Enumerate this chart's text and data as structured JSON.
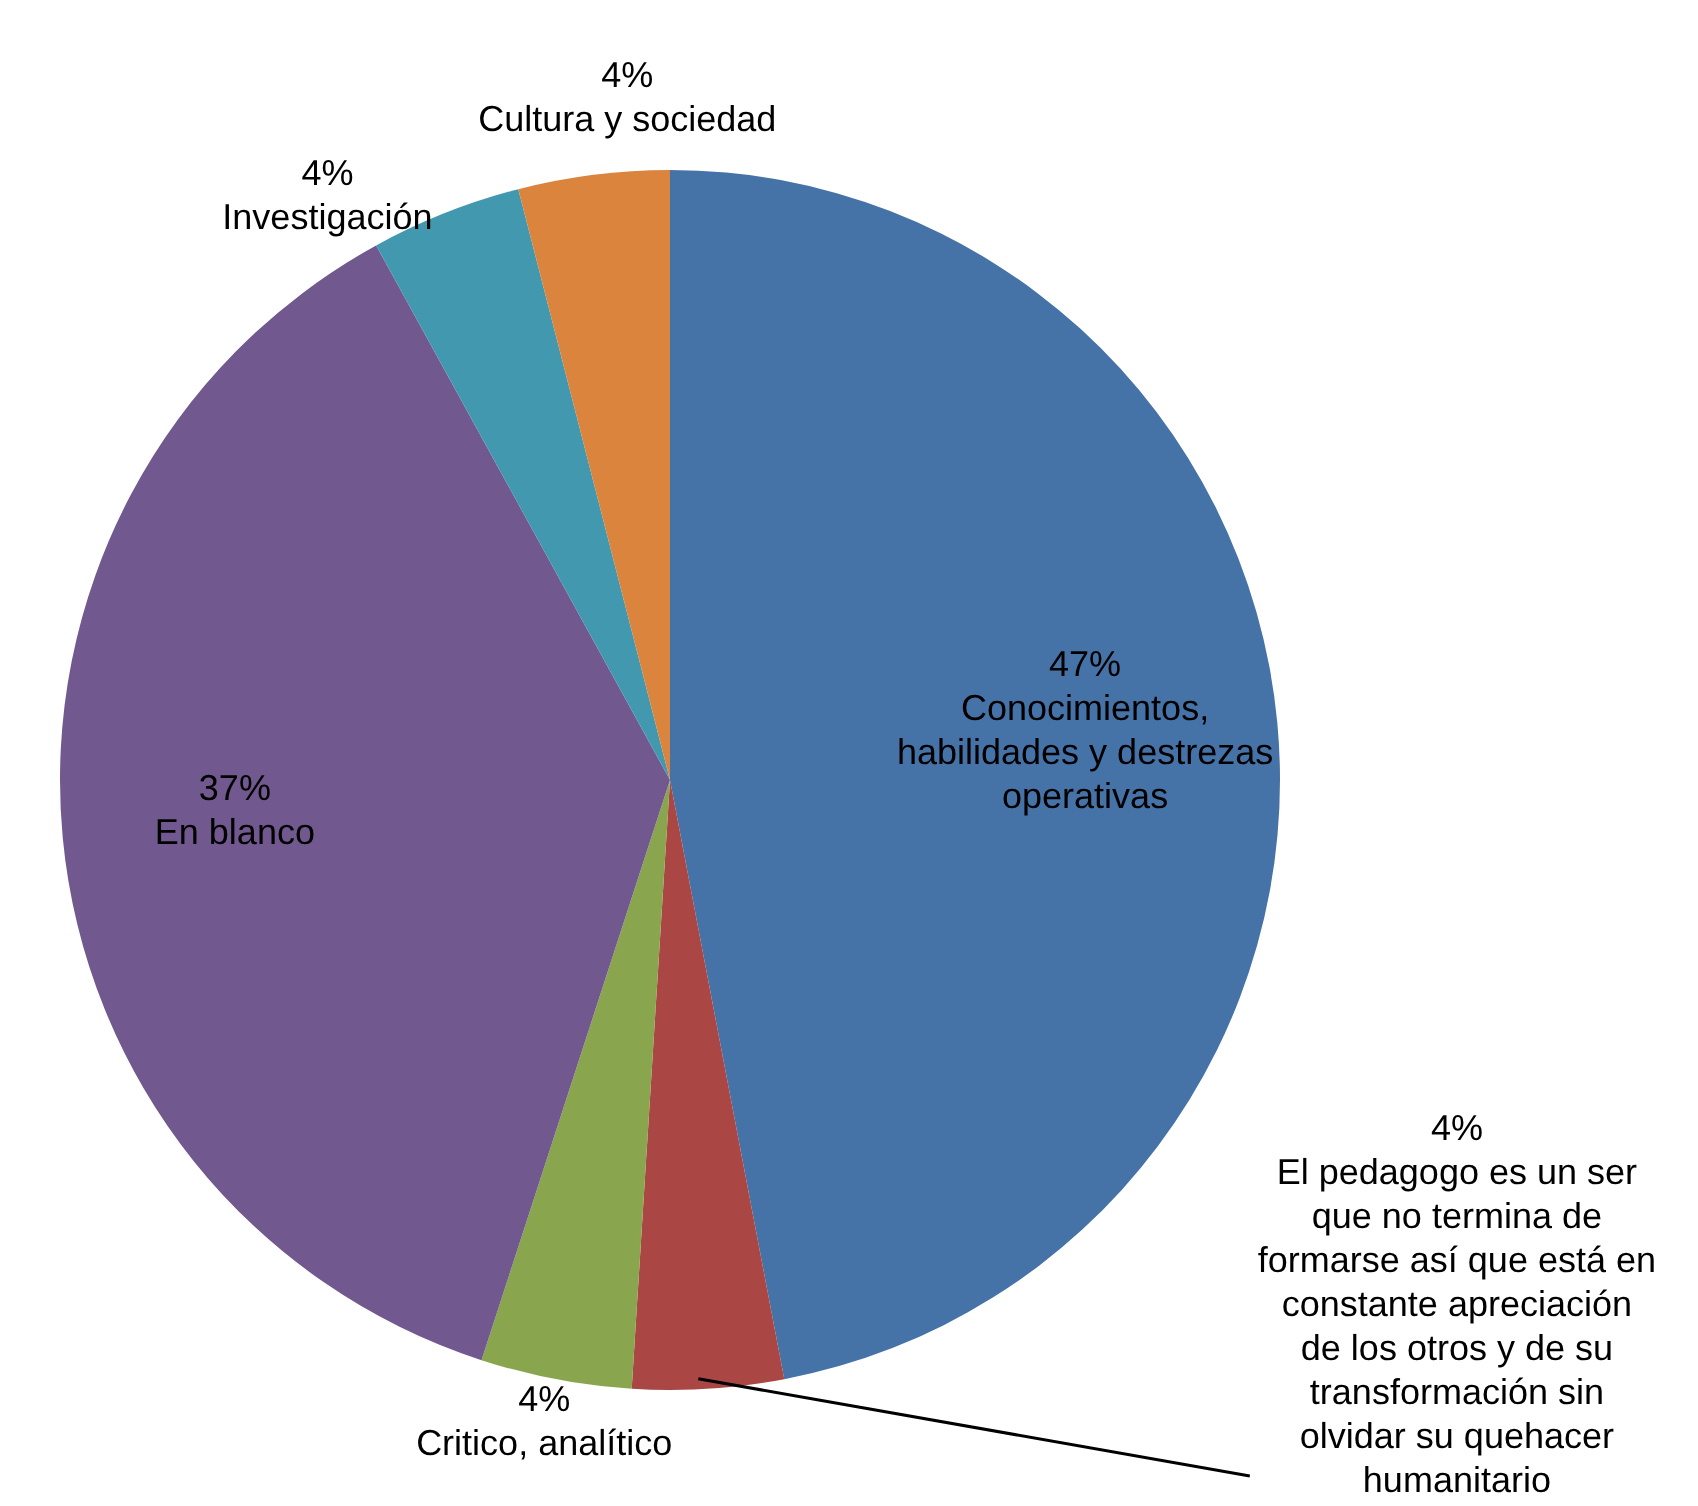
{
  "chart_data": {
    "type": "pie",
    "categories": [
      "Conocimientos, habilidades y destrezas operativas",
      "El pedagogo es un ser que no termina de formarse así que está en constante apreciación de los otros y de su transformación sin olvidar su quehacer humanitario",
      "Critico, analítico",
      "En blanco",
      "Investigación",
      "Cultura y sociedad"
    ],
    "values": [
      47,
      4,
      4,
      37,
      4,
      4
    ],
    "value_labels": [
      "47%",
      "4%",
      "4%",
      "37%",
      "4%",
      "4%"
    ],
    "colors": [
      "#4572a7",
      "#aa4643",
      "#89a54e",
      "#71588f",
      "#4198af",
      "#db843d"
    ]
  }
}
